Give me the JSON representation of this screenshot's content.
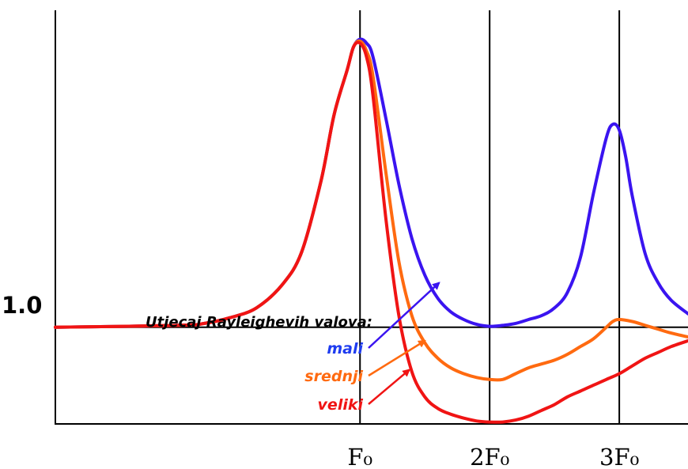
{
  "chart_data": {
    "type": "line",
    "title": "",
    "xlabel": "",
    "ylabel": "",
    "x_ticks": [
      "F₀",
      "2F₀",
      "3F₀"
    ],
    "x_tick_values": [
      1,
      2,
      3
    ],
    "y_ticks": [
      "1.0"
    ],
    "y_tick_values": [
      1.0
    ],
    "xlim": [
      -1.35,
      3.53
    ],
    "ylim": [
      0.5,
      2.64
    ],
    "reference_line_y": 1.0,
    "grid_x": true,
    "annotation_title": "Utjecaj Rayleighevih valova:",
    "series": [
      {
        "name": "mali",
        "color": "#3a14f0",
        "x": [
          -1.35,
          -0.4,
          -0.2,
          0.0,
          0.2,
          0.4,
          0.55,
          0.7,
          0.8,
          0.9,
          0.95,
          1.0,
          1.05,
          1.1,
          1.2,
          1.3,
          1.4,
          1.5,
          1.6,
          1.7,
          1.8,
          1.9,
          2.0,
          2.1,
          2.2,
          2.3,
          2.4,
          2.5,
          2.6,
          2.7,
          2.8,
          2.9,
          2.95,
          3.0,
          3.05,
          3.1,
          3.2,
          3.3,
          3.4,
          3.53
        ],
        "y": [
          1.0,
          1.01,
          1.02,
          1.05,
          1.1,
          1.22,
          1.39,
          1.76,
          2.1,
          2.33,
          2.45,
          2.49,
          2.47,
          2.4,
          2.08,
          1.74,
          1.46,
          1.27,
          1.15,
          1.08,
          1.04,
          1.015,
          1.005,
          1.01,
          1.02,
          1.04,
          1.06,
          1.1,
          1.18,
          1.36,
          1.69,
          1.98,
          2.05,
          2.02,
          1.88,
          1.68,
          1.38,
          1.23,
          1.14,
          1.07
        ]
      },
      {
        "name": "srednji",
        "color": "#ff6a10",
        "x": [
          -1.35,
          -0.4,
          -0.2,
          0.0,
          0.2,
          0.4,
          0.55,
          0.7,
          0.8,
          0.9,
          0.95,
          1.0,
          1.05,
          1.1,
          1.2,
          1.3,
          1.4,
          1.5,
          1.6,
          1.7,
          1.8,
          1.9,
          2.0,
          2.1,
          2.2,
          2.3,
          2.4,
          2.5,
          2.6,
          2.7,
          2.8,
          2.9,
          2.95,
          3.0,
          3.1,
          3.2,
          3.3,
          3.4,
          3.53
        ],
        "y": [
          1.0,
          1.01,
          1.02,
          1.05,
          1.1,
          1.22,
          1.39,
          1.76,
          2.1,
          2.33,
          2.45,
          2.48,
          2.43,
          2.3,
          1.8,
          1.34,
          1.06,
          0.92,
          0.84,
          0.79,
          0.76,
          0.74,
          0.73,
          0.73,
          0.76,
          0.79,
          0.81,
          0.83,
          0.86,
          0.9,
          0.94,
          1.0,
          1.03,
          1.04,
          1.03,
          1.01,
          0.99,
          0.97,
          0.95
        ]
      },
      {
        "name": "veliki",
        "color": "#f01414",
        "x": [
          -1.35,
          -0.4,
          -0.2,
          0.0,
          0.2,
          0.4,
          0.55,
          0.7,
          0.8,
          0.9,
          0.95,
          1.0,
          1.05,
          1.1,
          1.2,
          1.3,
          1.4,
          1.5,
          1.6,
          1.7,
          1.8,
          1.9,
          2.0,
          2.1,
          2.2,
          2.3,
          2.4,
          2.5,
          2.6,
          2.7,
          2.8,
          2.9,
          3.0,
          3.1,
          3.2,
          3.3,
          3.4,
          3.53
        ],
        "y": [
          1.0,
          1.01,
          1.02,
          1.05,
          1.1,
          1.22,
          1.39,
          1.76,
          2.1,
          2.33,
          2.45,
          2.47,
          2.4,
          2.2,
          1.56,
          1.06,
          0.77,
          0.64,
          0.58,
          0.55,
          0.53,
          0.515,
          0.51,
          0.51,
          0.52,
          0.54,
          0.57,
          0.6,
          0.64,
          0.67,
          0.7,
          0.73,
          0.76,
          0.8,
          0.84,
          0.87,
          0.9,
          0.93
        ]
      }
    ],
    "legend_arrows": [
      {
        "series": "mali",
        "label": "mali",
        "target": [
          1.61,
          1.23
        ]
      },
      {
        "series": "srednji",
        "label": "srednji",
        "target": [
          1.5,
          0.93
        ]
      },
      {
        "series": "veliki",
        "label": "veliki",
        "target": [
          1.38,
          0.78
        ]
      }
    ]
  }
}
